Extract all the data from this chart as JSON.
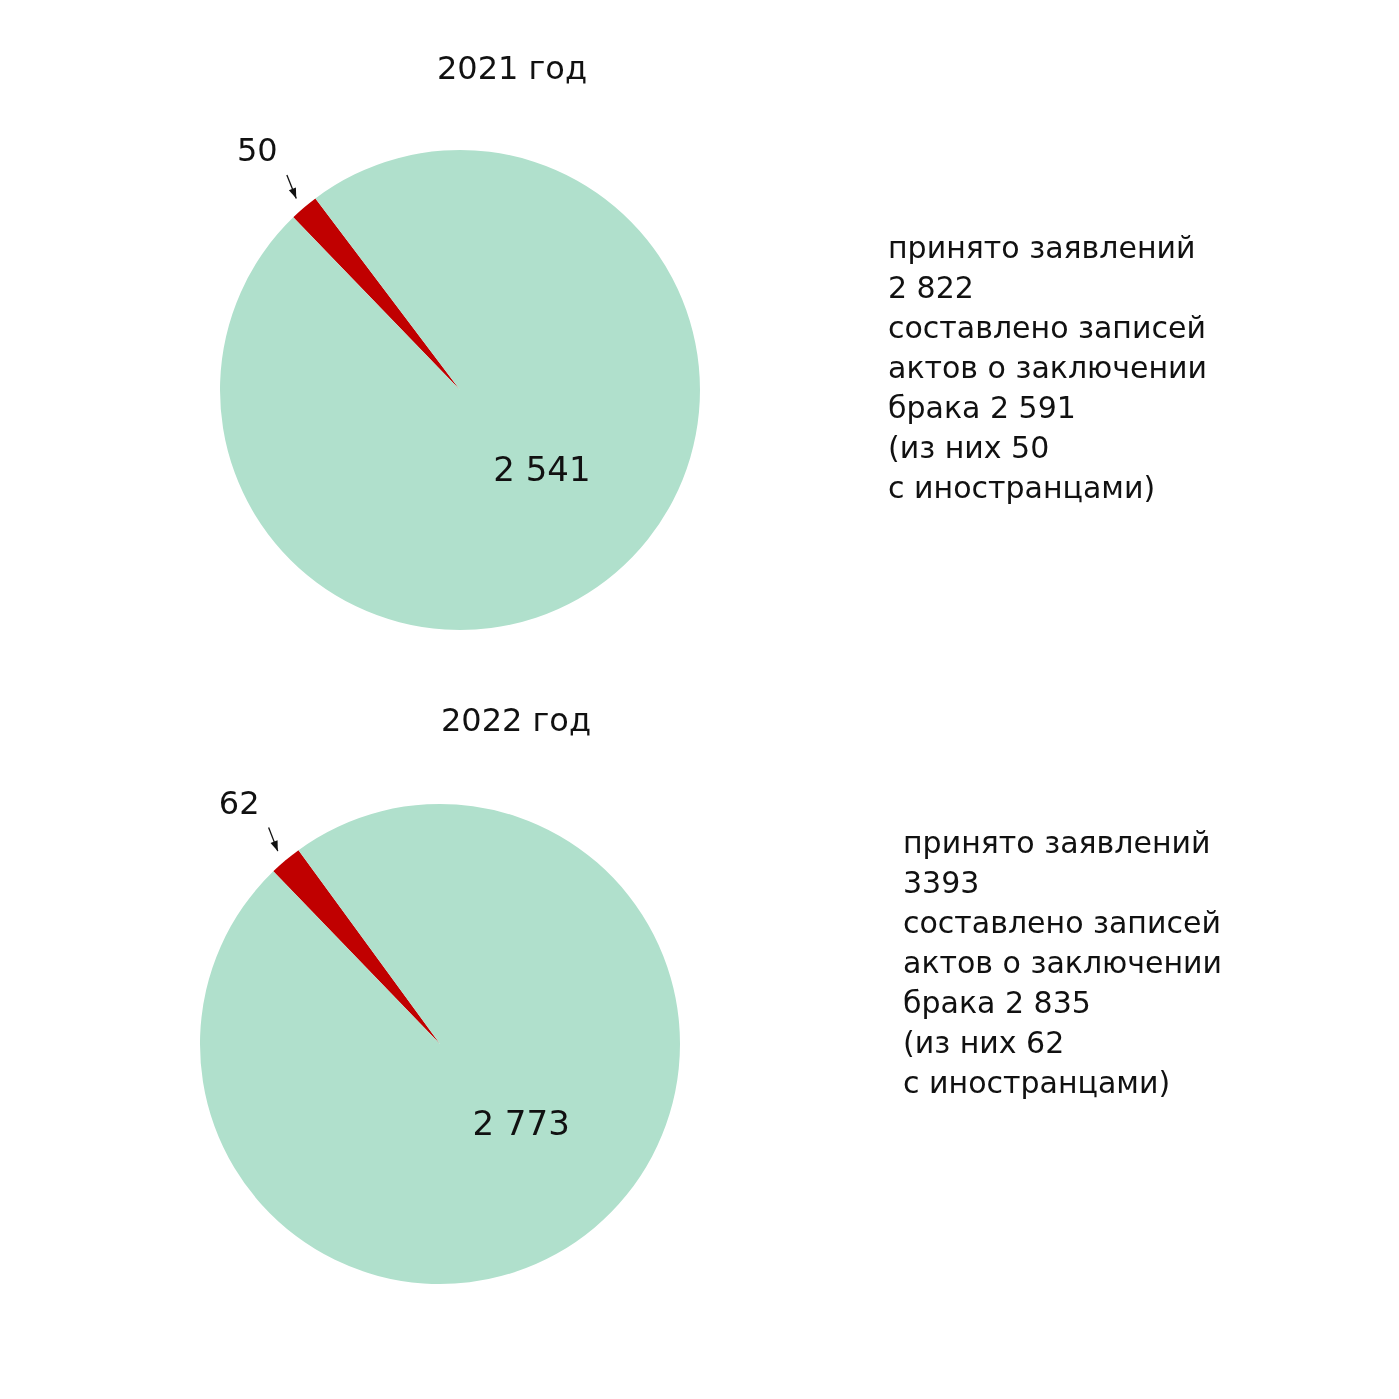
{
  "chart_data": [
    {
      "type": "pie",
      "title": "2021 год",
      "categories": [
        null,
        null
      ],
      "values": [
        50,
        2541
      ],
      "colors": [
        "#c00000",
        "#b0e0cc"
      ],
      "value_labels": [
        "50",
        "2 541"
      ],
      "annotations": [
        "принято заявлений\n2 822\nсоставлено записей\nактов о заключении\nбрака 2 591\n(из них 50\nс иностранцами)"
      ]
    },
    {
      "type": "pie",
      "title": "2022 год",
      "categories": [
        null,
        null
      ],
      "values": [
        62,
        2773
      ],
      "colors": [
        "#c00000",
        "#b0e0cc"
      ],
      "value_labels": [
        "62",
        "2 773"
      ],
      "annotations": [
        "принято заявлений\n3393\nсоставлено записей\nактов о заключении\nбрака 2 835\n(из них 62\nс иностранцами)"
      ]
    }
  ]
}
